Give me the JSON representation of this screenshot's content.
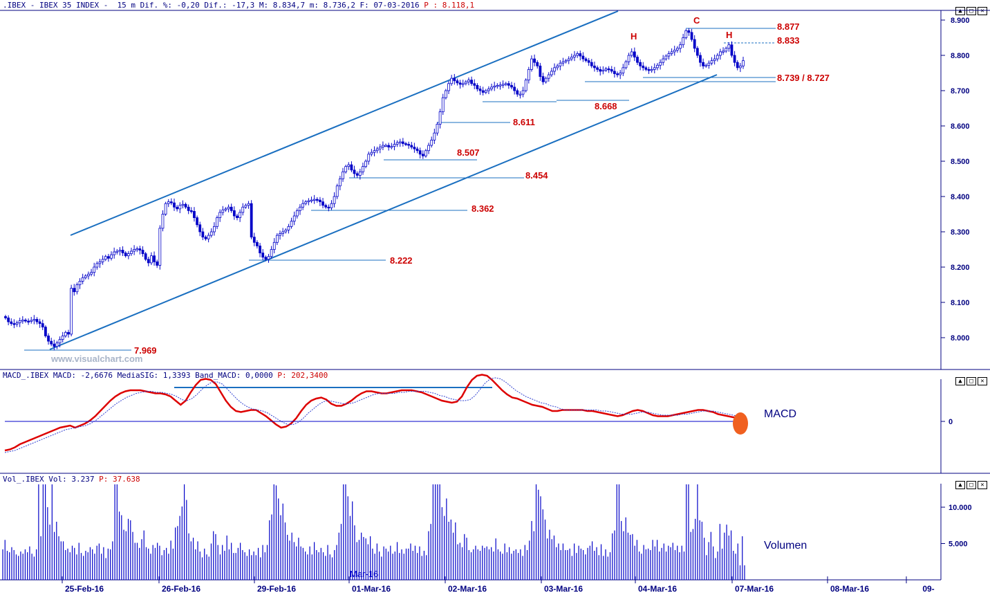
{
  "header": {
    "price": ".IBEX - IBEX 35 INDEX -  15 m Dif. %: -0,20 Dif.: -17,3 M: 8.834,7 m: 8.736,2 F: 07-03-2016 ",
    "price_p": "P : 8.118,1",
    "macd": "MACD_.IBEX MACD: -2,6676 MediaSIG: 1,3393 Band_MACD: 0,0000 ",
    "macd_p": "P: 202,3400",
    "vol": "Vol_.IBEX Vol: 3.237 ",
    "vol_p": "P: 37.638"
  },
  "watermark": "www.visualchart.com",
  "pane_labels": {
    "macd": "MACD",
    "volume": "Volumen"
  },
  "window_buttons": [
    "▲",
    "□",
    "✕"
  ],
  "colors": {
    "price": "#0000c8",
    "line": "#1a6fc0",
    "label": "#cc0000",
    "axis": "#000080",
    "macd": "#dd0000",
    "signal": "#3040d0",
    "marker": "#f06020"
  },
  "chart_data": [
    {
      "type": "candlestick",
      "title": "IBEX 35 INDEX 15 m",
      "x_ticks": [
        "25-Feb-16",
        "26-Feb-16",
        "29-Feb-16",
        "01-Mar-16",
        "02-Mar-16",
        "03-Mar-16",
        "04-Mar-16",
        "07-Mar-16",
        "08-Mar-16",
        "09-"
      ],
      "y_ticks": [
        "8.900",
        "8.800",
        "8.700",
        "8.600",
        "8.500",
        "8.400",
        "8.300",
        "8.200",
        "8.100",
        "8.000"
      ],
      "ylim": [
        7.937,
        8.938
      ],
      "closes": [
        8.056,
        8.045,
        8.04,
        8.038,
        8.042,
        8.048,
        8.05,
        8.047,
        8.046,
        8.049,
        8.052,
        8.045,
        8.04,
        8.03,
        8.005,
        7.99,
        7.982,
        7.975,
        7.985,
        7.995,
        8.005,
        8.015,
        8.01,
        8.14,
        8.13,
        8.15,
        8.16,
        8.17,
        8.175,
        8.18,
        8.185,
        8.2,
        8.21,
        8.215,
        8.222,
        8.23,
        8.225,
        8.235,
        8.243,
        8.245,
        8.248,
        8.24,
        8.232,
        8.238,
        8.245,
        8.25,
        8.252,
        8.248,
        8.238,
        8.222,
        8.212,
        8.232,
        8.215,
        8.205,
        8.31,
        8.35,
        8.38,
        8.385,
        8.382,
        8.37,
        8.365,
        8.375,
        8.378,
        8.37,
        8.36,
        8.358,
        8.34,
        8.32,
        8.3,
        8.285,
        8.28,
        8.29,
        8.3,
        8.315,
        8.34,
        8.355,
        8.362,
        8.365,
        8.37,
        8.36,
        8.345,
        8.34,
        8.355,
        8.37,
        8.375,
        8.38,
        8.285,
        8.27,
        8.26,
        8.24,
        8.228,
        8.222,
        8.23,
        8.25,
        8.27,
        8.29,
        8.295,
        8.3,
        8.305,
        8.315,
        8.33,
        8.345,
        8.36,
        8.37,
        8.38,
        8.385,
        8.388,
        8.39,
        8.392,
        8.39,
        8.385,
        8.375,
        8.37,
        8.368,
        8.38,
        8.4,
        8.43,
        8.45,
        8.47,
        8.485,
        8.49,
        8.475,
        8.465,
        8.46,
        8.47,
        8.485,
        8.5,
        8.52,
        8.525,
        8.53,
        8.535,
        8.54,
        8.545,
        8.545,
        8.54,
        8.542,
        8.548,
        8.553,
        8.555,
        8.55,
        8.548,
        8.545,
        8.54,
        8.535,
        8.53,
        8.52,
        8.515,
        8.53,
        8.545,
        8.56,
        8.58,
        8.605,
        8.64,
        8.68,
        8.7,
        8.72,
        8.735,
        8.728,
        8.722,
        8.718,
        8.72,
        8.725,
        8.73,
        8.72,
        8.715,
        8.705,
        8.7,
        8.695,
        8.7,
        8.705,
        8.71,
        8.713,
        8.715,
        8.716,
        8.718,
        8.72,
        8.715,
        8.71,
        8.7,
        8.69,
        8.69,
        8.7,
        8.73,
        8.76,
        8.79,
        8.78,
        8.77,
        8.74,
        8.725,
        8.735,
        8.745,
        8.755,
        8.765,
        8.77,
        8.778,
        8.782,
        8.785,
        8.79,
        8.795,
        8.8,
        8.805,
        8.798,
        8.79,
        8.785,
        8.78,
        8.77,
        8.765,
        8.76,
        8.755,
        8.758,
        8.762,
        8.76,
        8.755,
        8.748,
        8.745,
        8.75,
        8.765,
        8.782,
        8.8,
        8.81,
        8.795,
        8.78,
        8.77,
        8.765,
        8.76,
        8.757,
        8.76,
        8.765,
        8.772,
        8.78,
        8.79,
        8.798,
        8.805,
        8.81,
        8.815,
        8.82,
        8.83,
        8.85,
        8.87,
        8.865,
        8.845,
        8.82,
        8.8,
        8.78,
        8.77,
        8.772,
        8.778,
        8.785,
        8.79,
        8.8,
        8.81,
        8.812,
        8.82,
        8.83,
        8.8,
        8.78,
        8.765,
        8.77,
        8.785
      ]
    },
    {
      "type": "line",
      "title": "MACD",
      "y_ticks": [
        "0"
      ],
      "series": [
        {
          "name": "MACD",
          "values": [
            -28,
            -27,
            -25,
            -22,
            -20,
            -18,
            -16,
            -14,
            -12,
            -10,
            -8,
            -6,
            -5,
            -4,
            -6,
            -4,
            -2,
            1,
            5,
            10,
            15,
            20,
            24,
            27,
            29,
            30,
            30,
            30,
            29,
            28,
            27,
            27,
            26,
            24,
            20,
            16,
            20,
            28,
            35,
            40,
            41,
            40,
            36,
            28,
            20,
            14,
            10,
            9,
            10,
            11,
            11,
            8,
            5,
            1,
            -3,
            -6,
            -5,
            -2,
            3,
            10,
            16,
            20,
            22,
            23,
            21,
            17,
            15,
            15,
            17,
            20,
            24,
            27,
            29,
            29,
            28,
            27,
            27,
            28,
            29,
            30,
            30,
            30,
            29,
            28,
            26,
            24,
            22,
            20,
            19,
            18,
            19,
            24,
            33,
            40,
            44,
            45,
            44,
            40,
            35,
            30,
            26,
            23,
            22,
            20,
            18,
            16,
            15,
            14,
            12,
            10,
            10,
            11,
            11,
            11,
            11,
            11,
            10,
            10,
            9,
            8,
            7,
            6,
            5,
            6,
            8,
            10,
            11,
            10,
            8,
            6,
            5,
            5,
            5,
            6,
            7,
            8,
            9,
            10,
            11,
            11,
            10,
            9,
            7,
            6,
            5,
            4,
            4,
            3
          ]
        },
        {
          "name": "MediaSIG",
          "values": [
            -30,
            -29,
            -28,
            -26,
            -24,
            -22,
            -20,
            -18,
            -16,
            -14,
            -12,
            -10,
            -8,
            -7,
            -6,
            -5,
            -4,
            -2,
            1,
            5,
            9,
            13,
            17,
            20,
            23,
            25,
            27,
            28,
            29,
            29,
            28,
            28,
            27,
            26,
            24,
            21,
            20,
            22,
            26,
            31,
            35,
            38,
            38,
            36,
            31,
            26,
            21,
            17,
            14,
            12,
            11,
            10,
            8,
            5,
            2,
            -1,
            -3,
            -3,
            -1,
            3,
            8,
            12,
            16,
            19,
            20,
            19,
            18,
            17,
            17,
            18,
            20,
            22,
            24,
            26,
            27,
            27,
            27,
            27,
            28,
            28,
            29,
            29,
            29,
            29,
            28,
            27,
            25,
            24,
            22,
            21,
            20,
            20,
            21,
            25,
            31,
            37,
            41,
            42,
            41,
            38,
            34,
            30,
            27,
            24,
            22,
            20,
            18,
            17,
            15,
            14,
            12,
            11,
            11,
            11,
            11,
            11,
            11,
            11,
            10,
            10,
            9,
            8,
            7,
            7,
            7,
            8,
            9,
            9,
            8,
            7,
            6,
            6,
            6,
            6,
            7,
            7,
            8,
            9,
            10,
            10,
            10,
            9,
            8,
            7,
            6,
            5,
            4
          ]
        }
      ]
    },
    {
      "type": "bar",
      "title": "Volumen",
      "y_ticks": [
        "10.000",
        "5.000"
      ],
      "values": [
        4200,
        5500,
        4000,
        3800,
        4500,
        4100,
        3500,
        3300,
        3900,
        3600,
        4200,
        3800,
        4600,
        3600,
        3200,
        4200,
        15500,
        6000,
        13500,
        15500,
        10000,
        7600,
        15500,
        6600,
        8000,
        6000,
        5300,
        5300,
        4100,
        4300,
        3800,
        4700,
        4400,
        3500,
        5100,
        3700,
        3300,
        4000,
        3800,
        4500,
        4200,
        3600,
        4700,
        5000,
        3600,
        4500,
        3000,
        4300,
        4200,
        5300,
        15500,
        15500,
        9400,
        8900,
        6900,
        6700,
        8400,
        8200,
        6600,
        5100,
        5100,
        4400,
        5600,
        6800,
        4500,
        4300,
        3600,
        4800,
        4400,
        5100,
        4700,
        3400,
        4100,
        4400,
        3600,
        5400,
        4300,
        7200,
        7400,
        8800,
        10100,
        14500,
        11000,
        6400,
        5300,
        5800,
        4200,
        5300,
        3900,
        3100,
        4300,
        3500,
        3200,
        5000,
        6700,
        6300,
        4800,
        3500,
        4800,
        4000,
        6100,
        4200,
        5100,
        3700,
        3700,
        4400,
        5100,
        4100,
        3800,
        3300,
        4200,
        3400,
        3900,
        3400,
        4400,
        3100,
        4800,
        3800,
        4800,
        8200,
        9000,
        15500,
        13000,
        11200,
        8900,
        10500,
        7900,
        6200,
        5400,
        6500,
        5200,
        4600,
        5800,
        4600,
        4400,
        3900,
        3500,
        4600,
        3500,
        5200,
        4100,
        3800,
        4400,
        3800,
        3300,
        4800,
        3500,
        3100,
        4100,
        4800,
        6500,
        7700,
        15500,
        15500,
        11500,
        8800,
        10800,
        7500,
        5200,
        5500,
        6500,
        5900,
        5700,
        4900,
        6000,
        4300,
        3600,
        5000,
        3900,
        3200,
        4600,
        4300,
        3900,
        4700,
        3600,
        3900,
        5200,
        3700,
        4200,
        3600,
        4300,
        4300,
        5000,
        4000,
        4700,
        3700,
        4600,
        3300,
        4000,
        3400,
        6700,
        7700,
        15500,
        15500,
        15500,
        15500,
        10000,
        8800,
        11200,
        8000,
        8300,
        6500,
        7900,
        4900,
        5100,
        4500,
        6300,
        5800,
        4100,
        3800,
        4200,
        4700,
        4200,
        4000,
        4700,
        4400,
        4600,
        4200,
        4500,
        3900,
        5700,
        4200,
        3900,
        3600,
        5000,
        3800,
        4500,
        3600,
        4000,
        4200,
        3700,
        4200,
        3300,
        4800,
        4100,
        5400,
        8100,
        6700,
        15500,
        12400,
        11500,
        9700,
        8300,
        5700,
        6900,
        5600,
        6100,
        4500,
        5000,
        4100,
        5000,
        4100,
        4100,
        4300,
        3300,
        5000,
        3700,
        4700,
        4300,
        4100,
        3500,
        4400,
        4700,
        5300,
        4000,
        4500,
        3400,
        4900,
        3300,
        4200,
        3200,
        3800,
        6400,
        6800,
        15500,
        14300,
        8100,
        6700,
        8600,
        6500,
        6200,
        6300,
        4700,
        5500,
        3900,
        3600,
        4800,
        4200,
        4300,
        4100,
        5500,
        4600,
        5500,
        3900,
        4400,
        5000,
        3900,
        4700,
        4500,
        5100,
        4100,
        4700,
        3800,
        4700,
        3900,
        15500,
        15000,
        6600,
        7000,
        8400,
        15500,
        8200,
        8000,
        5800,
        3400,
        5200,
        6600,
        4600,
        3000,
        3900,
        7700,
        4300,
        6500,
        7600,
        6100,
        6800,
        4000,
        3600,
        5000,
        2000,
        6000,
        2000
      ]
    }
  ],
  "price_lines": [
    {
      "label": "7.969"
    },
    {
      "label": "8.222"
    },
    {
      "label": "8.362"
    },
    {
      "label": "8.454"
    },
    {
      "label": "8.507"
    },
    {
      "label": "8.611"
    },
    {
      "label": "8.668"
    },
    {
      "label": "8.739 / 8.727"
    },
    {
      "label": "8.833"
    },
    {
      "label": "8.877"
    }
  ],
  "pattern_labels": [
    "H",
    "C",
    "H"
  ],
  "axis_month_label": "Mar-16"
}
